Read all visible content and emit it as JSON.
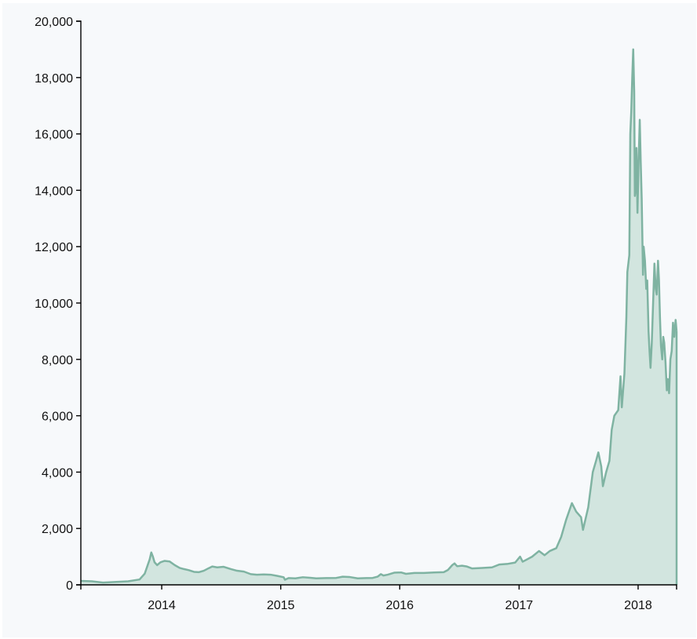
{
  "chart_data": {
    "type": "area",
    "title": "",
    "xlabel": "",
    "ylabel": "",
    "xlim": [
      "2013-04-28",
      "2018-04-29"
    ],
    "ylim": [
      0,
      20000
    ],
    "grid": false,
    "colors": {
      "line": "#7fb3a2",
      "fill": "#d2e5df",
      "axis": "#000000",
      "background": "#f7f9fb"
    },
    "x_ticks": [
      {
        "label": "2014",
        "date": "2014-01-01"
      },
      {
        "label": "2015",
        "date": "2015-01-01"
      },
      {
        "label": "2016",
        "date": "2016-01-01"
      },
      {
        "label": "2017",
        "date": "2017-01-01"
      },
      {
        "label": "2018",
        "date": "2018-01-01"
      }
    ],
    "y_ticks": [
      {
        "label": "0",
        "value": 0
      },
      {
        "label": "2,000",
        "value": 2000
      },
      {
        "label": "4,000",
        "value": 4000
      },
      {
        "label": "6,000",
        "value": 6000
      },
      {
        "label": "8,000",
        "value": 8000
      },
      {
        "label": "10,000",
        "value": 10000
      },
      {
        "label": "12,000",
        "value": 12000
      },
      {
        "label": "14,000",
        "value": 14000
      },
      {
        "label": "16,000",
        "value": 16000
      },
      {
        "label": "18,000",
        "value": 18000
      },
      {
        "label": "20,000",
        "value": 20000
      }
    ],
    "series": [
      {
        "x": [
          "2013-04-28",
          "2013-06-01",
          "2013-07-05",
          "2013-08-15",
          "2013-09-20",
          "2013-10-25",
          "2013-11-10",
          "2013-11-25",
          "2013-11-30",
          "2013-12-05",
          "2013-12-10",
          "2013-12-18",
          "2013-12-28",
          "2014-01-10",
          "2014-01-25",
          "2014-02-10",
          "2014-02-25",
          "2014-03-10",
          "2014-03-25",
          "2014-04-10",
          "2014-04-25",
          "2014-05-10",
          "2014-05-25",
          "2014-06-05",
          "2014-06-20",
          "2014-07-10",
          "2014-08-01",
          "2014-08-20",
          "2014-09-10",
          "2014-10-01",
          "2014-10-20",
          "2014-11-10",
          "2014-12-01",
          "2014-12-20",
          "2015-01-10",
          "2015-01-14",
          "2015-01-25",
          "2015-02-15",
          "2015-03-10",
          "2015-04-01",
          "2015-04-20",
          "2015-05-20",
          "2015-06-20",
          "2015-07-10",
          "2015-07-30",
          "2015-08-25",
          "2015-09-20",
          "2015-10-10",
          "2015-10-25",
          "2015-11-04",
          "2015-11-12",
          "2015-11-25",
          "2015-12-15",
          "2016-01-05",
          "2016-01-20",
          "2016-02-15",
          "2016-03-15",
          "2016-04-15",
          "2016-05-15",
          "2016-05-28",
          "2016-06-10",
          "2016-06-17",
          "2016-06-25",
          "2016-07-10",
          "2016-07-25",
          "2016-08-10",
          "2016-09-10",
          "2016-10-10",
          "2016-11-01",
          "2016-11-25",
          "2016-12-20",
          "2017-01-04",
          "2017-01-12",
          "2017-02-10",
          "2017-03-03",
          "2017-03-20",
          "2017-04-05",
          "2017-04-25",
          "2017-05-10",
          "2017-05-25",
          "2017-06-12",
          "2017-06-25",
          "2017-07-10",
          "2017-07-16",
          "2017-08-01",
          "2017-08-15",
          "2017-08-25",
          "2017-09-01",
          "2017-09-10",
          "2017-09-15",
          "2017-09-25",
          "2017-10-05",
          "2017-10-12",
          "2017-10-20",
          "2017-11-01",
          "2017-11-08",
          "2017-11-12",
          "2017-11-20",
          "2017-11-26",
          "2017-11-29",
          "2017-12-05",
          "2017-12-08",
          "2017-12-11",
          "2017-12-14",
          "2017-12-17",
          "2017-12-20",
          "2017-12-22",
          "2017-12-24",
          "2017-12-27",
          "2017-12-30",
          "2018-01-02",
          "2018-01-06",
          "2018-01-09",
          "2018-01-12",
          "2018-01-16",
          "2018-01-18",
          "2018-01-22",
          "2018-01-26",
          "2018-01-29",
          "2018-02-02",
          "2018-02-05",
          "2018-02-08",
          "2018-02-12",
          "2018-02-16",
          "2018-02-20",
          "2018-02-24",
          "2018-02-27",
          "2018-03-03",
          "2018-03-06",
          "2018-03-09",
          "2018-03-12",
          "2018-03-16",
          "2018-03-19",
          "2018-03-22",
          "2018-03-26",
          "2018-03-30",
          "2018-04-02",
          "2018-04-06",
          "2018-04-10",
          "2018-04-14",
          "2018-04-18",
          "2018-04-22",
          "2018-04-26",
          "2018-04-29"
        ],
        "values": [
          140,
          125,
          80,
          105,
          125,
          190,
          400,
          900,
          1150,
          1000,
          800,
          700,
          800,
          850,
          830,
          700,
          600,
          560,
          520,
          460,
          450,
          500,
          590,
          650,
          620,
          640,
          560,
          500,
          470,
          380,
          360,
          370,
          360,
          320,
          270,
          180,
          240,
          230,
          270,
          250,
          230,
          240,
          245,
          290,
          280,
          230,
          240,
          245,
          290,
          380,
          330,
          360,
          430,
          440,
          390,
          420,
          420,
          440,
          450,
          530,
          700,
          760,
          660,
          680,
          650,
          580,
          600,
          620,
          720,
          740,
          790,
          1000,
          820,
          1000,
          1200,
          1050,
          1200,
          1300,
          1700,
          2300,
          2900,
          2600,
          2400,
          1950,
          2750,
          4000,
          4400,
          4700,
          4200,
          3500,
          4000,
          4400,
          5500,
          6000,
          6200,
          7400,
          6300,
          7500,
          9500,
          11100,
          11700,
          16000,
          16800,
          18000,
          19000,
          17500,
          13800,
          14000,
          15500,
          13200,
          14800,
          16500,
          15000,
          13700,
          11000,
          12000,
          11500,
          10500,
          10800,
          9000,
          8300,
          7700,
          8600,
          10000,
          11400,
          10500,
          10300,
          11500,
          10800,
          9500,
          8500,
          8000,
          8800,
          8600,
          7900,
          6900,
          7300,
          6800,
          8000,
          8300,
          9300,
          8800,
          9400,
          9000
        ]
      }
    ]
  }
}
